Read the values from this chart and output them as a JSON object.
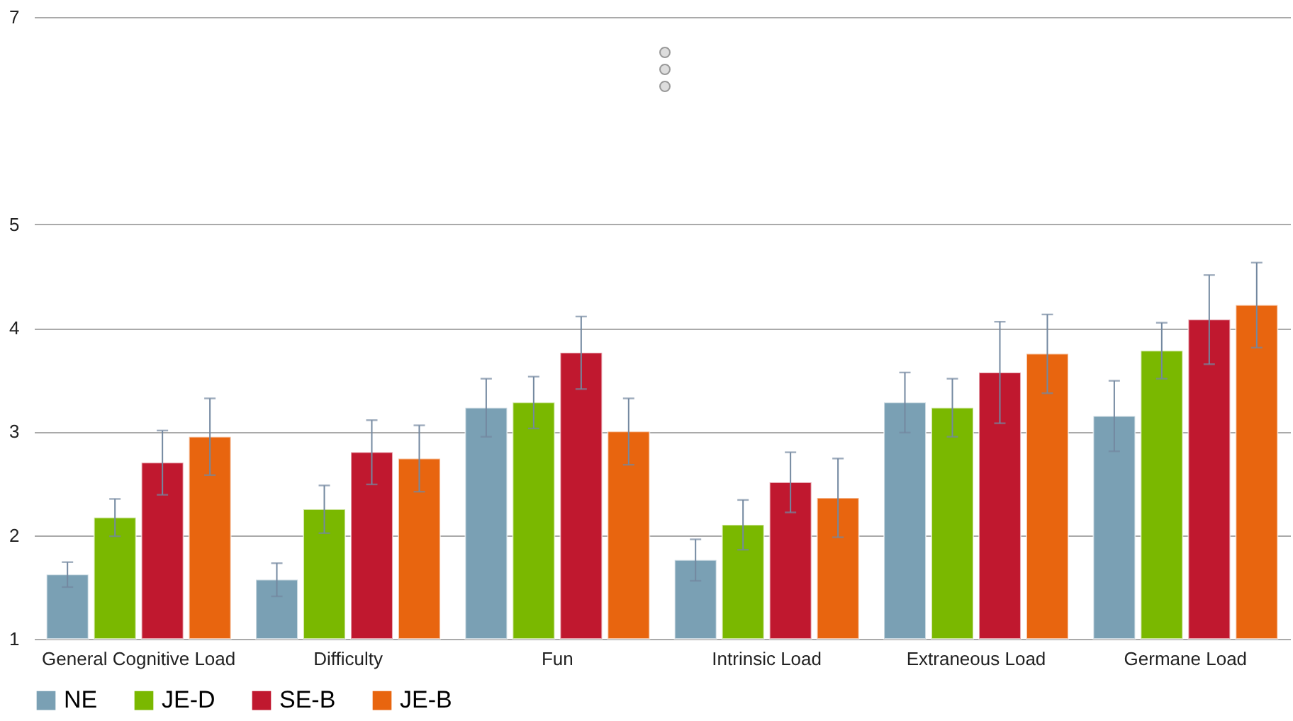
{
  "chart_data": {
    "type": "bar",
    "categories": [
      "General Cognitive Load",
      "Difficulty",
      "Fun",
      "Intrinsic Load",
      "Extraneous Load",
      "Germane Load"
    ],
    "series": [
      {
        "name": "NE",
        "color": "#7aa0b4",
        "values": [
          1.62,
          1.57,
          3.23,
          1.76,
          3.28,
          3.15
        ],
        "errors": [
          0.12,
          0.16,
          0.28,
          0.2,
          0.29,
          0.34
        ]
      },
      {
        "name": "JE-D",
        "color": "#7ab800",
        "values": [
          2.17,
          2.25,
          3.28,
          2.1,
          3.23,
          3.78
        ],
        "errors": [
          0.18,
          0.23,
          0.25,
          0.24,
          0.28,
          0.27
        ]
      },
      {
        "name": "SE-B",
        "color": "#c0182f",
        "values": [
          2.7,
          2.8,
          3.76,
          2.51,
          3.57,
          4.08
        ],
        "errors": [
          0.31,
          0.31,
          0.35,
          0.29,
          0.49,
          0.43
        ]
      },
      {
        "name": "JE-B",
        "color": "#e8650f",
        "values": [
          2.95,
          2.74,
          3.0,
          2.36,
          3.75,
          4.22
        ],
        "errors": [
          0.37,
          0.32,
          0.32,
          0.38,
          0.38,
          0.41
        ]
      }
    ],
    "ylim": [
      1,
      7
    ],
    "yticks": [
      1,
      2,
      3,
      4,
      5,
      7
    ],
    "grid": "y",
    "legend": "bottom"
  }
}
